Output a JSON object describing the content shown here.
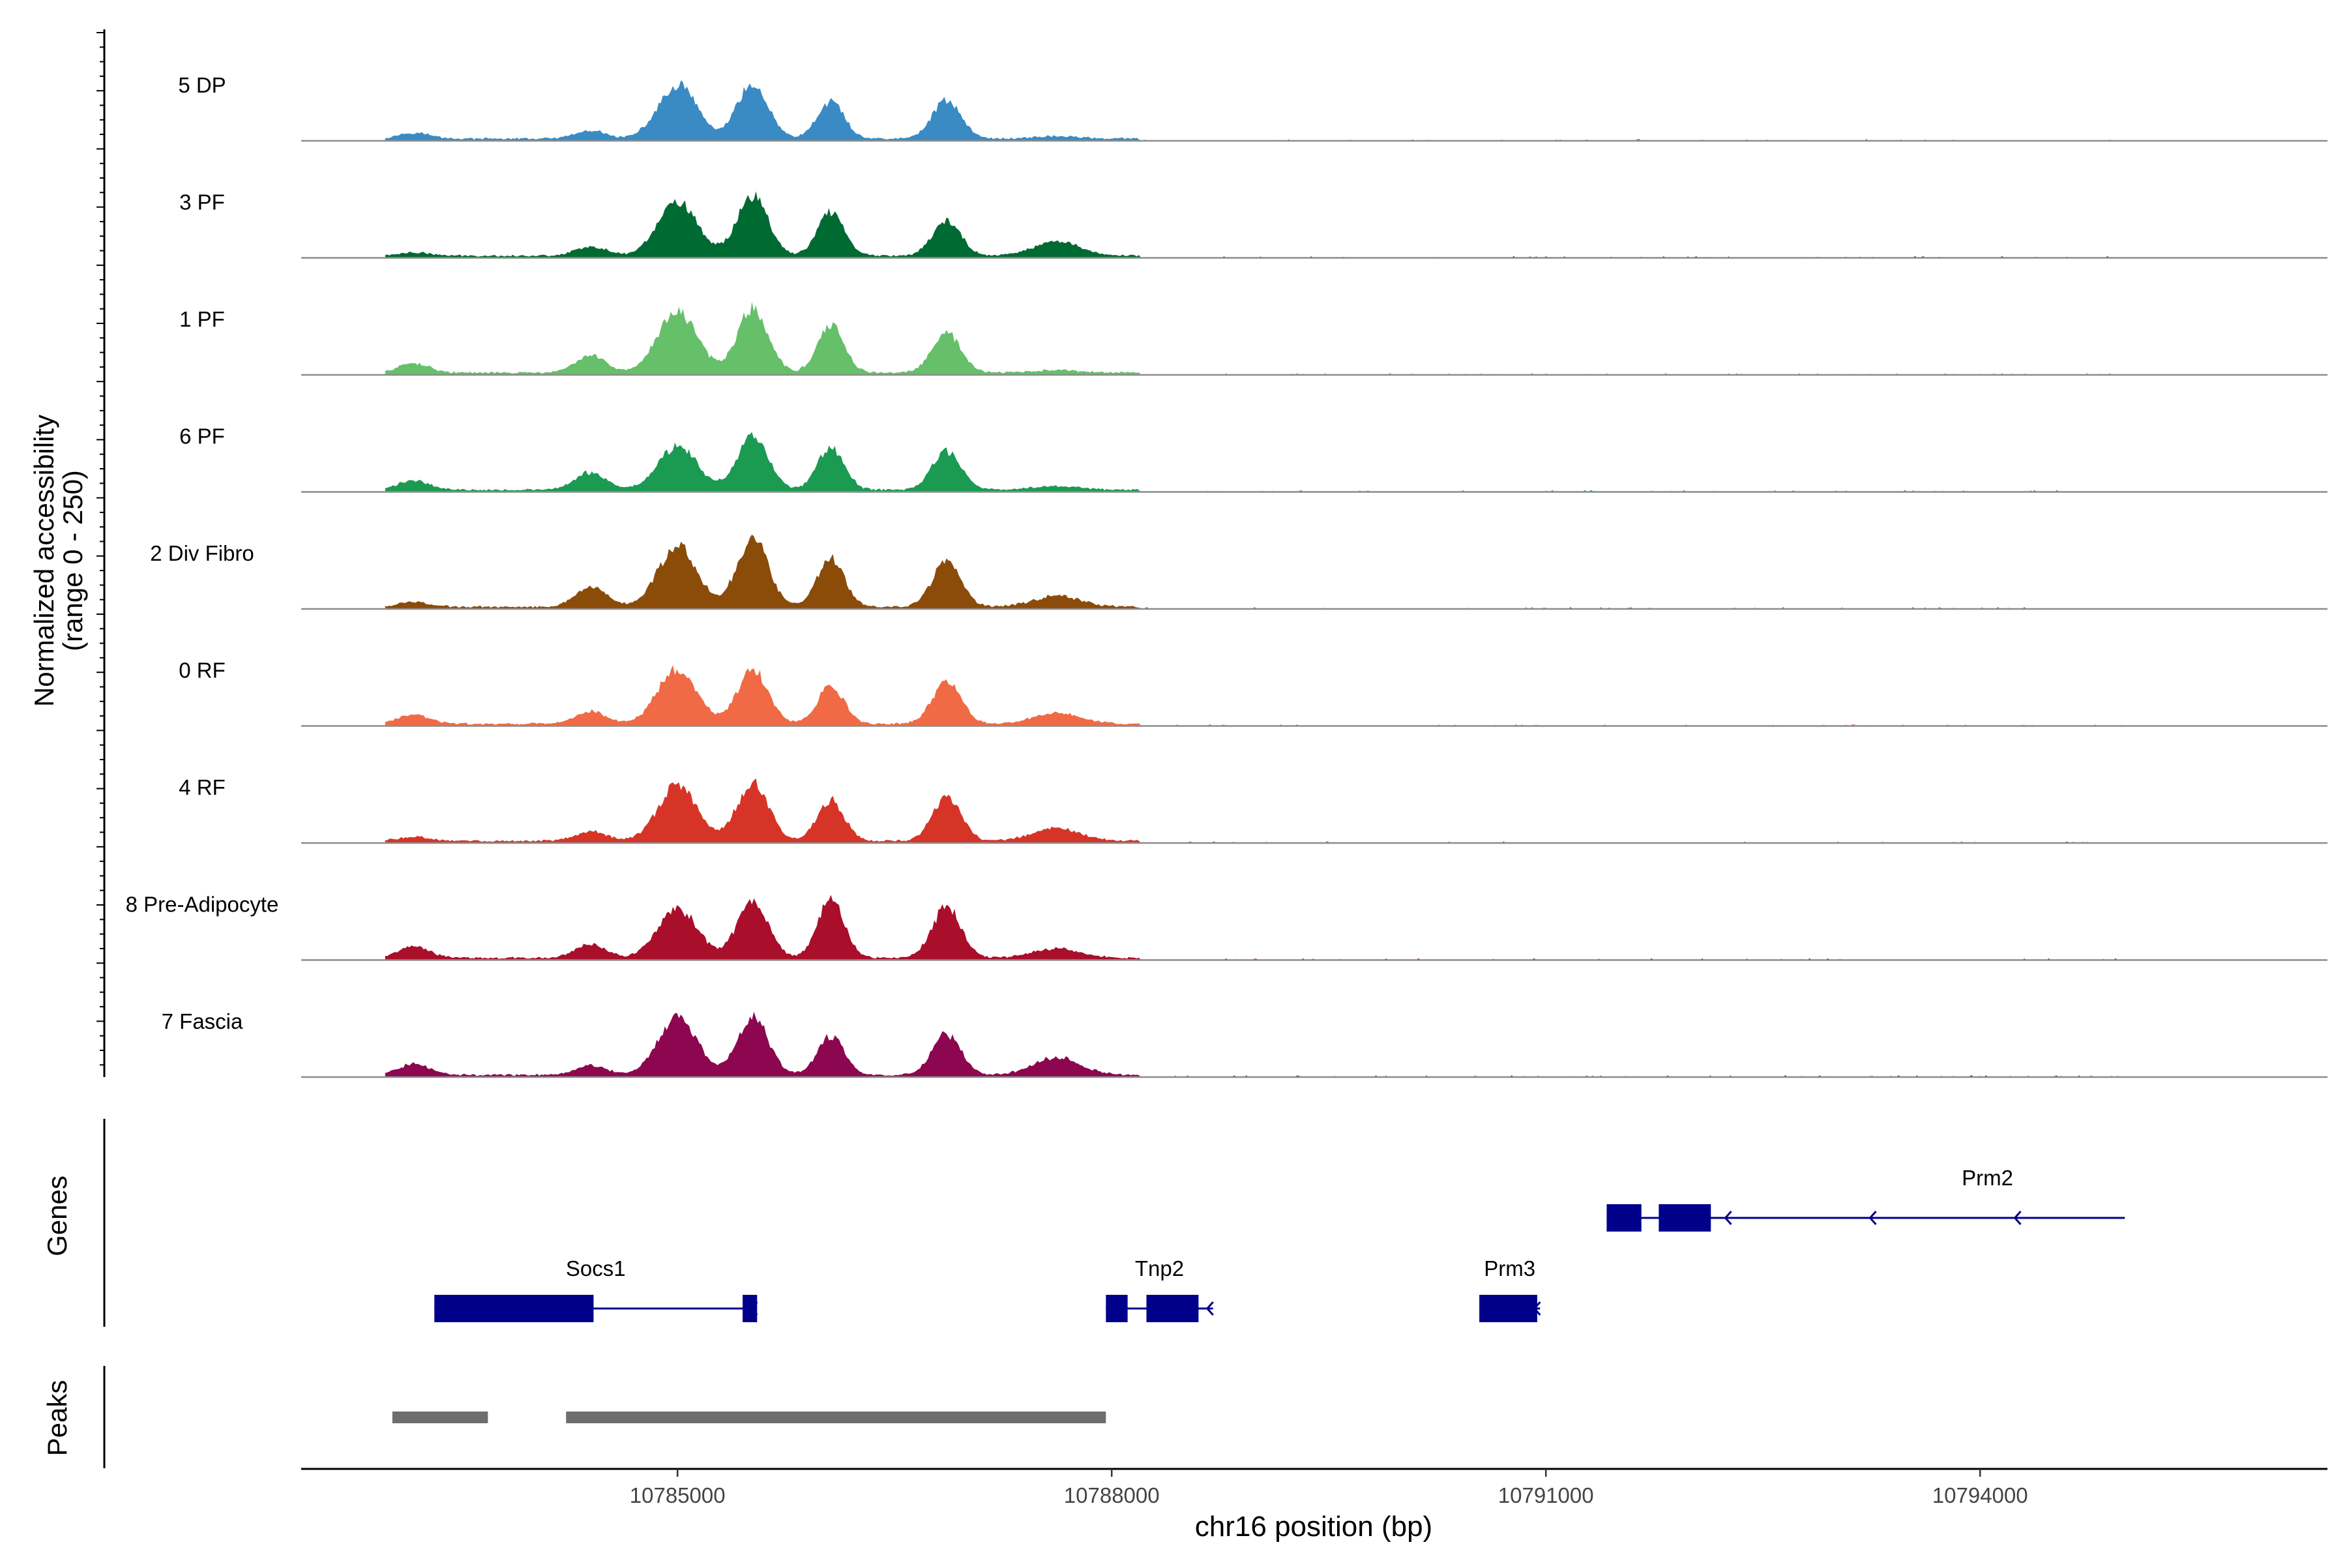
{
  "chart_data": {
    "type": "area",
    "title": "",
    "ylabel_line1": "Normalized accessibility",
    "ylabel_line2": "(range 0 - 250)",
    "xlabel": "chr16 position (bp)",
    "chromosome": "chr16",
    "xlim": [
      10782400,
      10796400
    ],
    "ylim": [
      0,
      250
    ],
    "x_ticks": [
      10785000,
      10788000,
      10791000,
      10794000
    ],
    "x_tick_labels": [
      "10785000",
      "10788000",
      "10791000",
      "10794000"
    ],
    "track_labels": {
      "genes": "Genes",
      "peaks": "Peaks"
    },
    "coverage_peak_centers": [
      10783180,
      10784400,
      10785000,
      10785520,
      10786060,
      10786860,
      10787620
    ],
    "series": [
      {
        "name": "5 DP",
        "color": "#3A8BC4",
        "peak_heights": [
          20,
          25,
          170,
          175,
          120,
          125,
          8
        ]
      },
      {
        "name": "3 PF",
        "color": "#006A33",
        "peak_heights": [
          10,
          30,
          175,
          190,
          140,
          110,
          45
        ]
      },
      {
        "name": "1 PF",
        "color": "#66C06A",
        "peak_heights": [
          30,
          55,
          195,
          205,
          150,
          125,
          8
        ]
      },
      {
        "name": "6 PF",
        "color": "#1B9A52",
        "peak_heights": [
          30,
          55,
          140,
          170,
          135,
          125,
          12
        ]
      },
      {
        "name": "2 Div Fibro",
        "color": "#8B4B09",
        "peak_heights": [
          15,
          65,
          195,
          225,
          155,
          145,
          35
        ]
      },
      {
        "name": "0 RF",
        "color": "#F06B45",
        "peak_heights": [
          30,
          40,
          175,
          175,
          120,
          135,
          35
        ]
      },
      {
        "name": "4 RF",
        "color": "#D73428",
        "peak_heights": [
          12,
          30,
          175,
          190,
          130,
          135,
          40
        ]
      },
      {
        "name": "8 Pre-Adipocyte",
        "color": "#A90E2A",
        "peak_heights": [
          40,
          45,
          160,
          180,
          185,
          165,
          30
        ]
      },
      {
        "name": "7 Fascia",
        "color": "#8C0650",
        "peak_heights": [
          35,
          30,
          185,
          190,
          125,
          130,
          55
        ]
      }
    ],
    "genes": [
      {
        "name": "Socs1",
        "strand": "-",
        "start": 10783320,
        "end": 10785550,
        "exons": [
          [
            10783320,
            10784420
          ],
          [
            10785450,
            10785550
          ]
        ],
        "row": 2
      },
      {
        "name": "Tnp2",
        "strand": "-",
        "start": 10787960,
        "end": 10788700,
        "exons": [
          [
            10787960,
            10788110
          ],
          [
            10788240,
            10788600
          ]
        ],
        "row": 2
      },
      {
        "name": "Prm3",
        "strand": "-",
        "start": 10790540,
        "end": 10790960,
        "exons": [
          [
            10790540,
            10790940
          ]
        ],
        "row": 2
      },
      {
        "name": "Prm2",
        "strand": "-",
        "start": 10791420,
        "end": 10795000,
        "exons": [
          [
            10791420,
            10791660
          ],
          [
            10791780,
            10792140
          ]
        ],
        "row": 1
      }
    ],
    "peaks": [
      {
        "start": 10783030,
        "end": 10783690
      },
      {
        "start": 10784230,
        "end": 10787960
      }
    ]
  }
}
